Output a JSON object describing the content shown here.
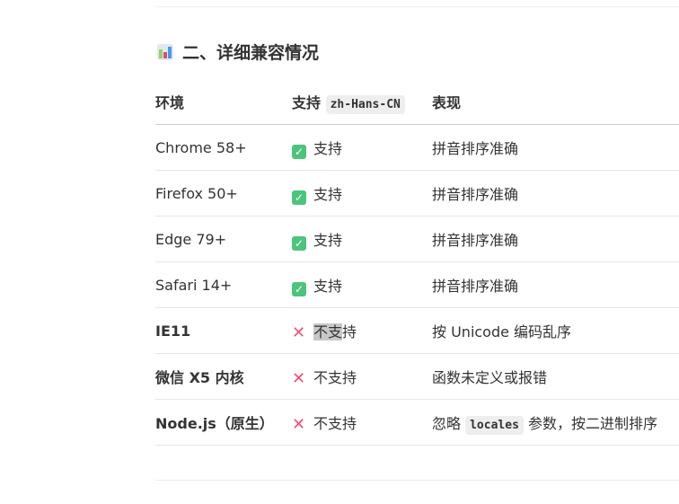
{
  "section_title": "二、详细兼容情况",
  "table": {
    "headers": {
      "env": "环境",
      "support_prefix": "支持",
      "support_code": "zh-Hans-CN",
      "behavior": "表现"
    },
    "rows": [
      {
        "env": "Chrome 58+",
        "supported": true,
        "support": "支持",
        "behavior": "拼音排序准确"
      },
      {
        "env": "Firefox 50+",
        "supported": true,
        "support": "支持",
        "behavior": "拼音排序准确"
      },
      {
        "env": "Edge 79+",
        "supported": true,
        "support": "支持",
        "behavior": "拼音排序准确"
      },
      {
        "env": "Safari 14+",
        "supported": true,
        "support": "支持",
        "behavior": "拼音排序准确"
      },
      {
        "env": "IE11",
        "supported": false,
        "support_selected": "不支",
        "support_rest": "持",
        "behavior": "按 Unicode 编码乱序"
      },
      {
        "env": "微信 X5 内核",
        "supported": false,
        "support": "不支持",
        "behavior": "函数未定义或报错"
      },
      {
        "env": "Node.js（原生）",
        "supported": false,
        "support": "不支持",
        "behavior_pre": "忽略",
        "behavior_code": "locales",
        "behavior_post": "参数，按二进制排序"
      }
    ]
  },
  "colors": {
    "check": "#4dc47d",
    "cross": "#f0507a",
    "selection": "#c8c8c8"
  }
}
